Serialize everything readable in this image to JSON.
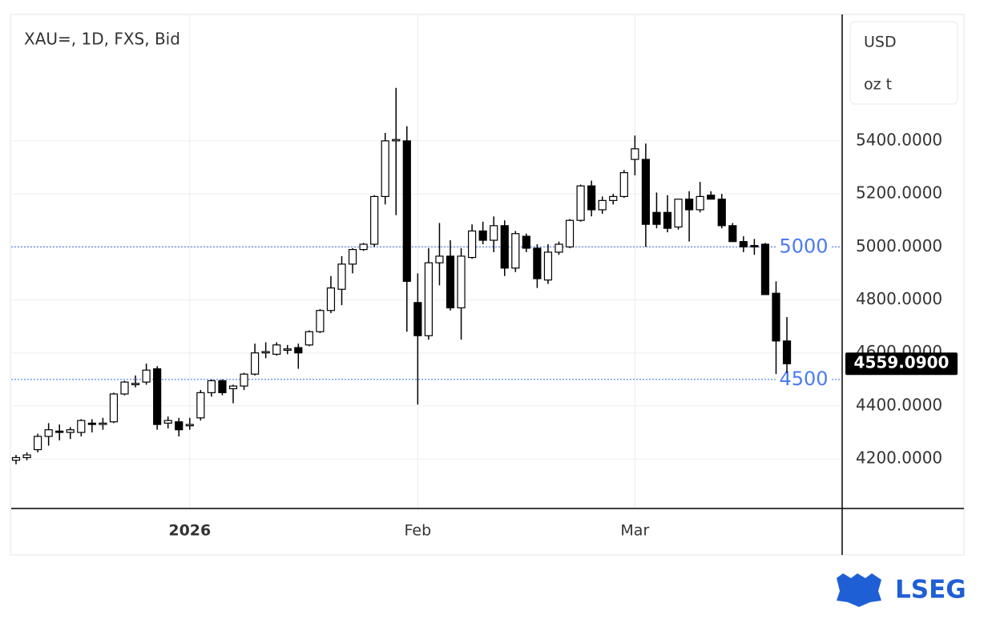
{
  "chart_data": {
    "type": "candlestick",
    "title": "XAU=, 1D, FXS, Bid",
    "currency": "USD",
    "unit": "oz t",
    "categories": [
      null,
      null,
      null,
      null,
      null,
      null,
      null,
      null,
      null,
      null,
      null,
      null,
      null,
      null,
      null,
      null,
      "2026",
      null,
      null,
      null,
      null,
      null,
      null,
      null,
      null,
      null,
      null,
      null,
      null,
      null,
      null,
      null,
      null,
      null,
      null,
      null,
      null,
      "Feb",
      null,
      null,
      null,
      null,
      null,
      null,
      null,
      null,
      null,
      null,
      null,
      null,
      null,
      null,
      null,
      null,
      null,
      null,
      null,
      "Mar",
      null,
      null,
      null,
      null,
      null,
      null,
      null,
      null,
      null,
      null,
      null,
      null,
      null,
      null
    ],
    "open": [
      4195,
      4205,
      4235,
      4285,
      4305,
      4300,
      4300,
      4335,
      4330,
      4340,
      4445,
      4480,
      4490,
      4540,
      4335,
      4340,
      4325,
      4355,
      4450,
      4495,
      4465,
      4475,
      4520,
      4600,
      4595,
      4610,
      4620,
      4630,
      4680,
      4760,
      4840,
      4935,
      4990,
      5010,
      5190,
      5400,
      5400,
      4790,
      4665,
      4940,
      4965,
      4770,
      4960,
      5060,
      5025,
      5080,
      4920,
      5040,
      4995,
      4875,
      4980,
      5000,
      5100,
      5230,
      5140,
      5175,
      5190,
      5330,
      5330,
      5130,
      5130,
      5075,
      5180,
      5140,
      5195,
      5180,
      5080,
      5020,
      5005,
      5010,
      4825,
      4645
    ],
    "high": [
      4215,
      4225,
      4295,
      4335,
      4330,
      4320,
      4350,
      4350,
      4355,
      4450,
      4495,
      4515,
      4560,
      4550,
      4360,
      4355,
      4355,
      4460,
      4500,
      4500,
      4480,
      4525,
      4635,
      4640,
      4640,
      4630,
      4635,
      4685,
      4765,
      4890,
      4965,
      4995,
      5015,
      5195,
      5430,
      5600,
      5455,
      4900,
      4995,
      5090,
      5025,
      4995,
      5085,
      5095,
      5115,
      5100,
      5060,
      5050,
      5010,
      5010,
      5020,
      5105,
      5235,
      5250,
      5190,
      5200,
      5290,
      5420,
      5390,
      5205,
      5195,
      5180,
      5210,
      5245,
      5210,
      5200,
      5090,
      5040,
      5030,
      5015,
      4870,
      4735
    ],
    "low": [
      4180,
      4195,
      4225,
      4250,
      4270,
      4275,
      4285,
      4300,
      4310,
      4335,
      4440,
      4470,
      4480,
      4310,
      4315,
      4285,
      4310,
      4345,
      4435,
      4440,
      4410,
      4460,
      4515,
      4580,
      4590,
      4595,
      4540,
      4625,
      4675,
      4750,
      4780,
      4900,
      4985,
      5000,
      5160,
      5120,
      4680,
      4405,
      4650,
      4855,
      4760,
      4650,
      4955,
      5010,
      4980,
      4890,
      4905,
      4980,
      4845,
      4860,
      4970,
      4995,
      5095,
      5115,
      5125,
      5160,
      5185,
      5270,
      5000,
      5070,
      5055,
      5065,
      5020,
      5130,
      5185,
      5070,
      5020,
      4980,
      4970,
      4820,
      4520,
      4525
    ],
    "close": [
      4205,
      4215,
      4285,
      4310,
      4300,
      4310,
      4345,
      4330,
      4335,
      4445,
      4490,
      4485,
      4535,
      4330,
      4345,
      4310,
      4330,
      4450,
      4495,
      4450,
      4475,
      4520,
      4600,
      4605,
      4630,
      4615,
      4600,
      4680,
      4760,
      4845,
      4935,
      4990,
      5010,
      5190,
      5400,
      5405,
      4870,
      4665,
      4940,
      4965,
      4770,
      4965,
      5060,
      5025,
      5080,
      4920,
      5050,
      4995,
      4880,
      4980,
      5010,
      5100,
      5230,
      5140,
      5175,
      5190,
      5280,
      5370,
      5085,
      5085,
      5070,
      5180,
      5140,
      5190,
      5180,
      5080,
      5020,
      5000,
      5000,
      4820,
      4645,
      4559.09
    ],
    "up_color": "#ffffff",
    "down_color": "#000000",
    "ylim": [
      4013,
      5877
    ],
    "yticks": [
      {
        "value": 4200,
        "label": "4200.0000"
      },
      {
        "value": 4400,
        "label": "4400.0000"
      },
      {
        "value": 4600,
        "label": "4600.0000"
      },
      {
        "value": 4800,
        "label": "4800.0000"
      },
      {
        "value": 5000,
        "label": "5000.0000"
      },
      {
        "value": 5200,
        "label": "5200.0000"
      },
      {
        "value": 5400,
        "label": "5400.0000"
      }
    ],
    "grid": true,
    "reference_lines": [
      5000,
      4500
    ],
    "reference_line_color": "#4a7bf0",
    "last_price": {
      "value": 4559.09,
      "label": "4559.0900"
    }
  },
  "logo_text": "LSEG"
}
